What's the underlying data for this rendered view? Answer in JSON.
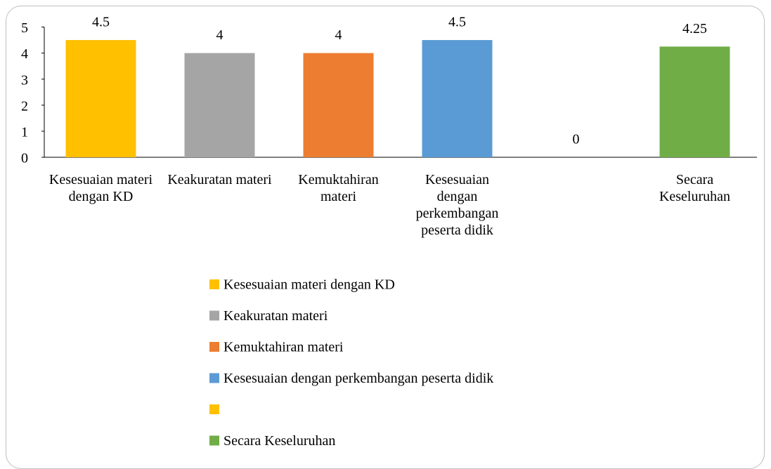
{
  "chart_data": {
    "type": "bar",
    "categories": [
      "Kesesuaian materi dengan KD",
      "Keakuratan materi",
      "Kemuktahiran materi",
      "Kesesuaian dengan perkembangan peserta didik",
      null,
      "Secara Keseluruhan"
    ],
    "values": [
      4.5,
      4,
      4,
      4.5,
      0,
      4.25
    ],
    "colors": [
      "#ffc000",
      "#a5a5a5",
      "#ed7d31",
      "#5b9bd5",
      "#ffc000",
      "#70ad47"
    ],
    "ylim": [
      0,
      5
    ],
    "yticks": [
      0,
      1,
      2,
      3,
      4,
      5
    ],
    "grid": false,
    "legend": "bottom"
  }
}
